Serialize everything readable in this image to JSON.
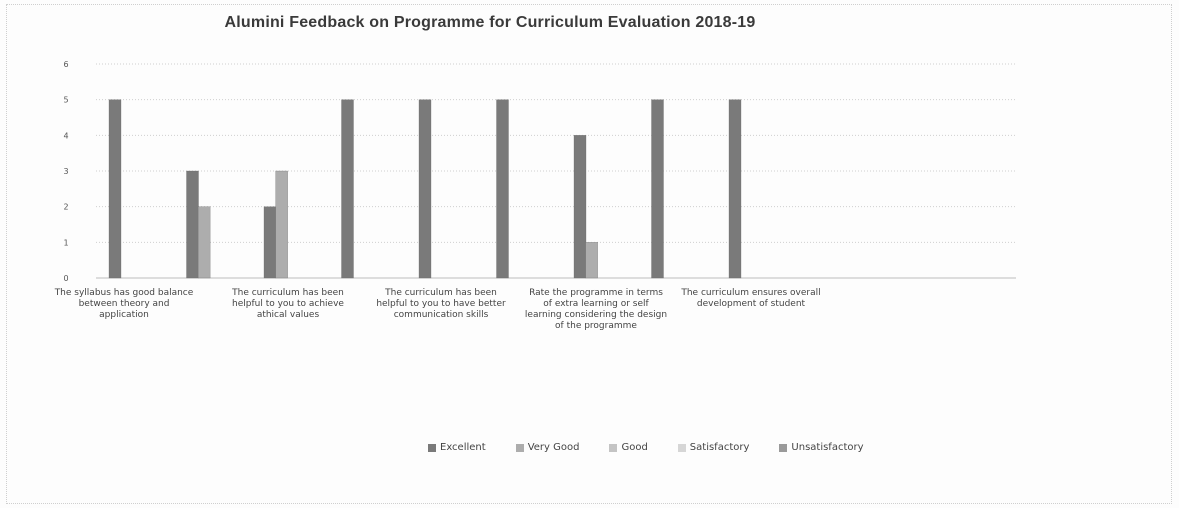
{
  "chart_data": {
    "type": "bar",
    "title": "Alumini  Feedback on Programme for Curriculum Evaluation 2018-19",
    "categories": [
      "The syllabus has good balance between theory and application",
      "The curriculum has been helpful to you to achieve athical values",
      "The curriculum has been helpful to you to have better communication skills",
      "Rate the programme in terms of extra learning or self learning considering the design of the programme",
      "The curriculum ensures overall development of student"
    ],
    "category_lines": [
      [
        "The syllabus has good balance",
        "between theory and",
        "application"
      ],
      [
        "The curriculum has been",
        "helpful to you to achieve",
        "athical values"
      ],
      [
        "The curriculum has been",
        "helpful to you to have better",
        "communication skills"
      ],
      [
        "Rate the programme in terms",
        "of extra learning or self",
        "learning considering the design",
        "of the programme"
      ],
      [
        "The curriculum ensures overall",
        "development of student"
      ]
    ],
    "bars": [
      {
        "x": 1.0,
        "series": "Excellent",
        "value": 5
      },
      {
        "x": 2.0,
        "series": "Excellent",
        "value": 3
      },
      {
        "x": 2.15,
        "series": "Very Good",
        "value": 2
      },
      {
        "x": 3.0,
        "series": "Excellent",
        "value": 2
      },
      {
        "x": 3.15,
        "series": "Very Good",
        "value": 3
      },
      {
        "x": 4.0,
        "series": "Excellent",
        "value": 5
      },
      {
        "x": 5.0,
        "series": "Excellent",
        "value": 5
      },
      {
        "x": 6.0,
        "series": "Excellent",
        "value": 5
      },
      {
        "x": 7.0,
        "series": "Excellent",
        "value": 4
      },
      {
        "x": 7.15,
        "series": "Very Good",
        "value": 1
      },
      {
        "x": 8.0,
        "series": "Excellent",
        "value": 5
      },
      {
        "x": 9.0,
        "series": "Excellent",
        "value": 5
      }
    ],
    "series": [
      {
        "name": "Excellent",
        "color": "#7a7a7a"
      },
      {
        "name": "Very Good",
        "color": "#adadad"
      },
      {
        "name": "Good",
        "color": "#c4c4c4"
      },
      {
        "name": "Satisfactory",
        "color": "#d6d6d6"
      },
      {
        "name": "Unsatisfactory",
        "color": "#9a9a9a"
      }
    ],
    "ylim": [
      0,
      6
    ],
    "yticks": [
      0,
      1,
      2,
      3,
      4,
      5,
      6
    ],
    "grid": true,
    "legend_position": "bottom"
  }
}
